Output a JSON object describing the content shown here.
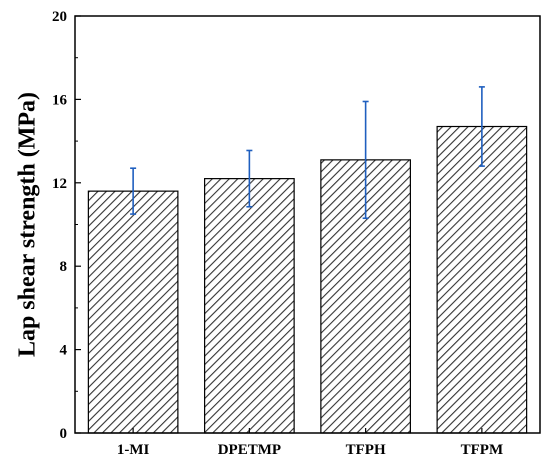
{
  "chart_data": {
    "type": "bar",
    "title": "",
    "xlabel": "",
    "ylabel": "Lap shear strength (MPa)",
    "ylim": [
      0,
      20
    ],
    "yticks": [
      0,
      4,
      8,
      12,
      16,
      20
    ],
    "grid": false,
    "legend": "none",
    "categories": [
      "1-MI",
      "DPETMP",
      "TFPH",
      "TFPM"
    ],
    "values": [
      11.6,
      12.2,
      13.1,
      14.7
    ],
    "errors": [
      1.1,
      1.35,
      2.8,
      1.9
    ],
    "bar_pattern": "diagonal-hatch",
    "colors": {
      "bar_fill": "#ffffff",
      "bar_hatch": "#333333",
      "error_bar": "#1f5fbf",
      "axis": "#000000"
    }
  }
}
